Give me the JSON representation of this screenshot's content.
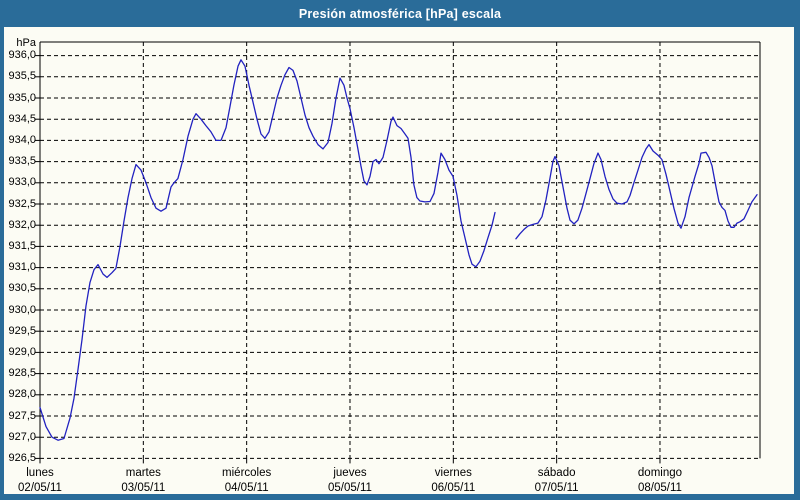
{
  "window": {
    "title": "Presión atmosférica [hPa] escala"
  },
  "colors": {
    "frame": "#2A6C99",
    "title_text": "#FFFFFF",
    "content_bg": "#FCFCF4",
    "grid": "#000000",
    "border": "#000000",
    "text": "#000000",
    "line": "#2222C0"
  },
  "axes": {
    "y_unit_label": "hPa",
    "y_tick_labels": [
      "936,0",
      "935,5",
      "935,0",
      "934,5",
      "934,0",
      "933,5",
      "933,0",
      "932,5",
      "932,0",
      "931,5",
      "931,0",
      "930,5",
      "930,0",
      "929,5",
      "929,0",
      "928,5",
      "928,0",
      "927,5",
      "927,0",
      "926,5"
    ],
    "x_ticks": [
      {
        "day": "lunes",
        "date": "02/05/11"
      },
      {
        "day": "martes",
        "date": "03/05/11"
      },
      {
        "day": "miércoles",
        "date": "04/05/11"
      },
      {
        "day": "jueves",
        "date": "05/05/11"
      },
      {
        "day": "viernes",
        "date": "06/05/11"
      },
      {
        "day": "sábado",
        "date": "07/05/11"
      },
      {
        "day": "domingo",
        "date": "08/05/11"
      }
    ]
  },
  "chart_data": {
    "type": "line",
    "title": "Presión atmosférica [hPa] escala",
    "xlabel": "",
    "ylabel": "hPa",
    "ylim": [
      926.5,
      936.32
    ],
    "ytick_min": 926.5,
    "ytick_max": 936.0,
    "ytick_step": 0.5,
    "xlim_days": [
      0,
      6.968
    ],
    "x_unit": "days since 02/05/11 00:00",
    "grid": "dashed",
    "legend": "none",
    "series": [
      {
        "name": "Presión atmosférica [hPa]",
        "color": "#2222C0",
        "segments": [
          [
            [
              0.0,
              927.7
            ],
            [
              0.058,
              927.25
            ],
            [
              0.116,
              927.0
            ],
            [
              0.174,
              926.93
            ],
            [
              0.232,
              926.97
            ],
            [
              0.29,
              927.45
            ],
            [
              0.329,
              927.92
            ],
            [
              0.368,
              928.6
            ],
            [
              0.406,
              929.3
            ],
            [
              0.445,
              930.1
            ],
            [
              0.484,
              930.65
            ],
            [
              0.523,
              930.95
            ],
            [
              0.561,
              931.07
            ],
            [
              0.61,
              930.85
            ],
            [
              0.648,
              930.77
            ],
            [
              0.697,
              930.88
            ],
            [
              0.735,
              930.98
            ],
            [
              0.774,
              931.5
            ],
            [
              0.813,
              932.1
            ],
            [
              0.852,
              932.65
            ],
            [
              0.89,
              933.1
            ],
            [
              0.929,
              933.43
            ],
            [
              0.977,
              933.3
            ],
            [
              1.026,
              933.0
            ],
            [
              1.074,
              932.65
            ],
            [
              1.123,
              932.4
            ],
            [
              1.171,
              932.33
            ],
            [
              1.219,
              932.4
            ],
            [
              1.268,
              932.9
            ],
            [
              1.297,
              933.0
            ],
            [
              1.335,
              933.1
            ],
            [
              1.384,
              933.55
            ],
            [
              1.432,
              934.1
            ],
            [
              1.481,
              934.5
            ],
            [
              1.51,
              934.63
            ],
            [
              1.558,
              934.5
            ],
            [
              1.606,
              934.35
            ],
            [
              1.655,
              934.2
            ],
            [
              1.703,
              934.0
            ],
            [
              1.752,
              934.0
            ],
            [
              1.8,
              934.3
            ],
            [
              1.839,
              934.8
            ],
            [
              1.877,
              935.3
            ],
            [
              1.916,
              935.75
            ],
            [
              1.945,
              935.9
            ],
            [
              1.984,
              935.75
            ],
            [
              2.023,
              935.3
            ],
            [
              2.061,
              934.9
            ],
            [
              2.1,
              934.5
            ],
            [
              2.139,
              934.15
            ],
            [
              2.177,
              934.05
            ],
            [
              2.216,
              934.2
            ],
            [
              2.255,
              934.6
            ],
            [
              2.294,
              935.0
            ],
            [
              2.332,
              935.3
            ],
            [
              2.371,
              935.55
            ],
            [
              2.41,
              935.72
            ],
            [
              2.448,
              935.65
            ],
            [
              2.487,
              935.4
            ],
            [
              2.526,
              935.0
            ],
            [
              2.565,
              934.6
            ],
            [
              2.603,
              934.3
            ],
            [
              2.642,
              934.1
            ],
            [
              2.69,
              933.9
            ],
            [
              2.739,
              933.8
            ],
            [
              2.787,
              933.95
            ],
            [
              2.826,
              934.4
            ],
            [
              2.865,
              935.0
            ],
            [
              2.903,
              935.47
            ],
            [
              2.942,
              935.3
            ],
            [
              2.971,
              935.0
            ],
            [
              3.0,
              934.75
            ],
            [
              3.039,
              934.3
            ],
            [
              3.077,
              933.8
            ],
            [
              3.106,
              933.4
            ],
            [
              3.135,
              933.05
            ],
            [
              3.165,
              932.95
            ],
            [
              3.194,
              933.15
            ],
            [
              3.223,
              933.5
            ],
            [
              3.252,
              933.55
            ],
            [
              3.281,
              933.45
            ],
            [
              3.319,
              933.6
            ],
            [
              3.358,
              934.0
            ],
            [
              3.397,
              934.45
            ],
            [
              3.416,
              934.55
            ],
            [
              3.455,
              934.35
            ],
            [
              3.494,
              934.28
            ],
            [
              3.532,
              934.15
            ],
            [
              3.561,
              934.05
            ],
            [
              3.59,
              933.6
            ],
            [
              3.619,
              932.95
            ],
            [
              3.648,
              932.65
            ],
            [
              3.677,
              932.57
            ],
            [
              3.726,
              932.55
            ],
            [
              3.774,
              932.56
            ],
            [
              3.813,
              932.75
            ],
            [
              3.852,
              933.25
            ],
            [
              3.881,
              933.7
            ],
            [
              3.919,
              933.55
            ],
            [
              3.958,
              933.3
            ],
            [
              3.997,
              933.15
            ],
            [
              4.036,
              932.7
            ],
            [
              4.074,
              932.1
            ],
            [
              4.113,
              931.7
            ],
            [
              4.152,
              931.3
            ],
            [
              4.181,
              931.08
            ],
            [
              4.219,
              931.02
            ],
            [
              4.258,
              931.15
            ],
            [
              4.297,
              931.4
            ],
            [
              4.335,
              931.7
            ],
            [
              4.374,
              932.0
            ],
            [
              4.403,
              932.3
            ]
          ],
          [
            [
              4.606,
              931.68
            ],
            [
              4.645,
              931.8
            ],
            [
              4.684,
              931.9
            ],
            [
              4.723,
              931.98
            ],
            [
              4.771,
              932.02
            ],
            [
              4.819,
              932.05
            ],
            [
              4.858,
              932.2
            ],
            [
              4.897,
              932.6
            ],
            [
              4.935,
              933.1
            ],
            [
              4.964,
              933.5
            ],
            [
              4.984,
              933.62
            ],
            [
              5.023,
              933.4
            ],
            [
              5.061,
              932.9
            ],
            [
              5.1,
              932.4
            ],
            [
              5.129,
              932.12
            ],
            [
              5.168,
              932.03
            ],
            [
              5.206,
              932.12
            ],
            [
              5.245,
              932.4
            ],
            [
              5.284,
              932.75
            ],
            [
              5.323,
              933.1
            ],
            [
              5.361,
              933.45
            ],
            [
              5.4,
              933.7
            ],
            [
              5.429,
              933.55
            ],
            [
              5.468,
              933.15
            ],
            [
              5.506,
              932.85
            ],
            [
              5.545,
              932.62
            ],
            [
              5.584,
              932.52
            ],
            [
              5.632,
              932.5
            ],
            [
              5.681,
              932.55
            ],
            [
              5.71,
              932.7
            ],
            [
              5.748,
              933.0
            ],
            [
              5.787,
              933.3
            ],
            [
              5.826,
              933.6
            ],
            [
              5.865,
              933.8
            ],
            [
              5.894,
              933.9
            ],
            [
              5.932,
              933.75
            ],
            [
              5.981,
              933.65
            ],
            [
              6.019,
              933.55
            ],
            [
              6.058,
              933.2
            ],
            [
              6.097,
              932.8
            ],
            [
              6.135,
              932.4
            ],
            [
              6.174,
              932.05
            ],
            [
              6.203,
              931.93
            ],
            [
              6.242,
              932.2
            ],
            [
              6.281,
              932.65
            ],
            [
              6.31,
              932.9
            ],
            [
              6.339,
              933.15
            ],
            [
              6.377,
              933.45
            ],
            [
              6.397,
              933.7
            ],
            [
              6.445,
              933.72
            ],
            [
              6.474,
              933.6
            ],
            [
              6.503,
              933.4
            ],
            [
              6.542,
              932.9
            ],
            [
              6.571,
              932.55
            ],
            [
              6.6,
              932.42
            ],
            [
              6.629,
              932.35
            ],
            [
              6.658,
              932.1
            ],
            [
              6.687,
              931.95
            ],
            [
              6.716,
              931.95
            ],
            [
              6.745,
              932.05
            ],
            [
              6.774,
              932.08
            ],
            [
              6.813,
              932.15
            ],
            [
              6.852,
              932.35
            ],
            [
              6.89,
              932.55
            ],
            [
              6.939,
              932.72
            ]
          ]
        ]
      }
    ]
  }
}
